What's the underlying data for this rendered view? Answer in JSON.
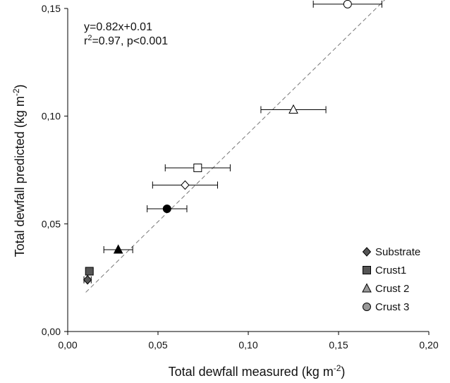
{
  "chart_data": {
    "type": "scatter",
    "xlabel": "Total dewfall measured (kg m",
    "xlabel_sup": "-2",
    "xlabel_end": ")",
    "ylabel": "Total dewfall predicted (kg m",
    "ylabel_sup": "-2",
    "ylabel_end": ")",
    "xlim": [
      0,
      0.2
    ],
    "ylim": [
      0,
      0.15
    ],
    "x_ticks": [
      0,
      0.05,
      0.1,
      0.15,
      0.2
    ],
    "x_tick_labels": [
      "0,00",
      "0,05",
      "0,10",
      "0,15",
      "0,20"
    ],
    "y_ticks": [
      0,
      0.05,
      0.1,
      0.15
    ],
    "y_tick_labels": [
      "0,00",
      "0,05",
      "0,10",
      "0,15"
    ],
    "annotation": {
      "line1": "y=0.82x+0.01",
      "line2_prefix": "r",
      "line2_sup": "2",
      "line2_rest": "=0.97, p<0.001"
    },
    "regression": {
      "slope": 0.82,
      "intercept": 0.01,
      "x_range": [
        0.01,
        0.18
      ],
      "style": "dashed"
    },
    "legend_position": "bottom-right",
    "legend": [
      {
        "label": "Substrate",
        "marker": "diamond",
        "color": "#555555"
      },
      {
        "label": "Crust1",
        "marker": "square",
        "color": "#555555"
      },
      {
        "label": "Crust 2",
        "marker": "triangle",
        "color": "#999999"
      },
      {
        "label": "Crust 3",
        "marker": "circle",
        "color": "#999999"
      }
    ],
    "points": [
      {
        "series": "Substrate",
        "marker": "diamond",
        "fill": "#555555",
        "x": 0.011,
        "y": 0.024,
        "xerr": 0.002
      },
      {
        "series": "Crust1",
        "marker": "square",
        "fill": "#555555",
        "x": 0.012,
        "y": 0.028,
        "xerr": 0.0
      },
      {
        "series": "Crust 2",
        "marker": "triangle",
        "fill": "#000000",
        "x": 0.028,
        "y": 0.038,
        "xerr": 0.008
      },
      {
        "series": "Crust 3",
        "marker": "circle",
        "fill": "#000000",
        "x": 0.055,
        "y": 0.057,
        "xerr": 0.011
      },
      {
        "series": "Substrate",
        "marker": "diamond",
        "fill": "#ffffff",
        "x": 0.065,
        "y": 0.068,
        "xerr": 0.018
      },
      {
        "series": "Crust1",
        "marker": "square",
        "fill": "#ffffff",
        "x": 0.072,
        "y": 0.076,
        "xerr": 0.018
      },
      {
        "series": "Crust 2",
        "marker": "triangle",
        "fill": "#ffffff",
        "x": 0.125,
        "y": 0.103,
        "xerr": 0.018
      },
      {
        "series": "Crust 3",
        "marker": "circle",
        "fill": "#ffffff",
        "x": 0.155,
        "y": 0.152,
        "xerr": 0.019
      }
    ]
  }
}
